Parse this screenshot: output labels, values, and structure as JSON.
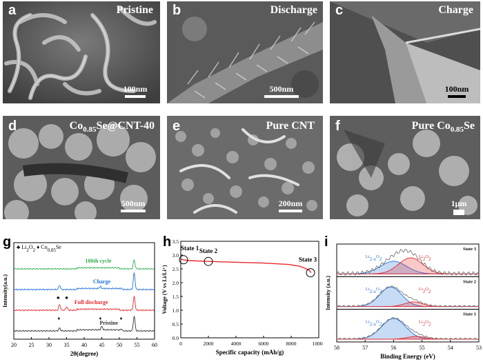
{
  "panels": {
    "a": {
      "label": "a",
      "title": "Pristine",
      "scale": "100nm"
    },
    "b": {
      "label": "b",
      "title": "Discharge",
      "scale": "500nm"
    },
    "c": {
      "label": "c",
      "title": "Charge",
      "scale": "100nm"
    },
    "d": {
      "label": "d",
      "title_main": "Co",
      "title_sub": "0.85",
      "title_tail": "Se@CNT-40",
      "scale": "500nm"
    },
    "e": {
      "label": "e",
      "title": "Pure CNT",
      "scale": "200nm"
    },
    "f": {
      "label": "f",
      "title_main": "Pure Co",
      "title_sub": "0.85",
      "title_tail": "Se",
      "scale": "1μm"
    }
  },
  "colors": {
    "black": "#333333",
    "red": "#e8262a",
    "blue": "#1e6fd9",
    "green": "#2fae4f"
  },
  "chart_data": [
    {
      "type": "line",
      "panel_label": "g",
      "xlabel": "2θ(degree)",
      "ylabel": "Intensity(a.u.)",
      "xlim": [
        20,
        60
      ],
      "xticks": [
        20,
        25,
        30,
        35,
        40,
        45,
        50,
        55,
        60
      ],
      "legend": {
        "sym1": "♣",
        "item1_main": "Li",
        "item1_sub1": "2",
        "item1_tail": "O",
        "item1_sub2": "2",
        "sym2": "♦",
        "item2_main": "Co",
        "item2_sub": "0.85",
        "item2_tail": "Se"
      },
      "series": [
        {
          "name": "Pristine",
          "color": "#333333",
          "offset": 0,
          "peaks": [
            [
              33,
              6
            ],
            [
              45,
              7
            ],
            [
              50.5,
              4
            ],
            [
              54.2,
              30
            ]
          ]
        },
        {
          "name": "Full discharge",
          "color": "#e8262a",
          "offset": 1,
          "peaks": [
            [
              33,
              12
            ],
            [
              35,
              7
            ],
            [
              54.2,
              28
            ]
          ]
        },
        {
          "name": "Charge",
          "color": "#1e6fd9",
          "offset": 2,
          "peaks": [
            [
              33,
              9
            ],
            [
              44.6,
              4
            ],
            [
              50.5,
              3
            ],
            [
              54.2,
              34
            ]
          ]
        },
        {
          "name": "100th cycle",
          "color": "#2fae4f",
          "offset": 3,
          "peaks": [
            [
              54.2,
              18
            ]
          ]
        }
      ],
      "markers": [
        {
          "x": 32.8,
          "series": 0,
          "sym": "♦"
        },
        {
          "x": 44.6,
          "series": 0,
          "sym": "♦"
        },
        {
          "x": 50.5,
          "series": 0,
          "sym": "♦"
        },
        {
          "x": 32.6,
          "series": 1,
          "sym": "♣"
        },
        {
          "x": 35.0,
          "series": 1,
          "sym": "♣"
        }
      ]
    },
    {
      "type": "line",
      "panel_label": "h",
      "xlabel": "Specific capacity (mAh/g)",
      "ylabel": "Voltage (V vs Li/Li⁺)",
      "xlim": [
        0,
        10000
      ],
      "ylim": [
        0,
        3.5
      ],
      "xticks": [
        0,
        2000,
        4000,
        6000,
        8000,
        10000
      ],
      "yticks": [
        0.0,
        0.5,
        1.0,
        1.5,
        2.0,
        2.5,
        3.0,
        3.5
      ],
      "curve": [
        [
          0,
          2.86
        ],
        [
          150,
          2.83
        ],
        [
          600,
          2.8
        ],
        [
          2000,
          2.77
        ],
        [
          4000,
          2.74
        ],
        [
          6000,
          2.71
        ],
        [
          7800,
          2.66
        ],
        [
          8600,
          2.6
        ],
        [
          9000,
          2.52
        ],
        [
          9300,
          2.45
        ],
        [
          9450,
          2.36
        ]
      ],
      "states": [
        {
          "name": "State 1",
          "x": 200,
          "y": 2.83
        },
        {
          "name": "State 2",
          "x": 2000,
          "y": 2.77
        },
        {
          "name": "State 3",
          "x": 9400,
          "y": 2.36
        }
      ]
    },
    {
      "type": "line",
      "panel_label": "i",
      "xlabel": "Binding Energy (eV)",
      "ylabel": "Intensity (a.u.)",
      "xlim": [
        58,
        53
      ],
      "xticks": [
        58,
        57,
        56,
        55,
        54,
        53
      ],
      "subpanels": [
        {
          "state": "State 3",
          "comp1": {
            "label": "Li2-xO2",
            "center": 56.0,
            "width": 0.65,
            "amp": 0.55,
            "color": "#1e6fd9"
          },
          "comp2": {
            "label": "Li2O2",
            "center": 55.4,
            "width": 0.6,
            "amp": 0.7,
            "color": "#e8262a"
          }
        },
        {
          "state": "State 2",
          "comp1": {
            "label": "Li2-xO2",
            "center": 56.1,
            "width": 0.55,
            "amp": 0.85,
            "color": "#1e6fd9"
          },
          "comp2": {
            "label": "Li2O2",
            "center": 55.3,
            "width": 0.45,
            "amp": 0.2,
            "color": "#e8262a"
          }
        },
        {
          "state": "State 1",
          "comp1": {
            "label": "Li2-xO2",
            "center": 56.0,
            "width": 0.6,
            "amp": 0.9,
            "color": "#1e6fd9"
          },
          "comp2": {
            "label": "Li2O2",
            "center": 55.2,
            "width": 0.45,
            "amp": 0.12,
            "color": "#e8262a"
          }
        }
      ],
      "labels": {
        "c1_main": "Li",
        "c1_sub": "2-x",
        "c1_tail": "O",
        "c1_sub2": "2",
        "c2_main": "Li",
        "c2_sub": "2",
        "c2_tail": "O",
        "c2_sub2": "2"
      }
    }
  ]
}
